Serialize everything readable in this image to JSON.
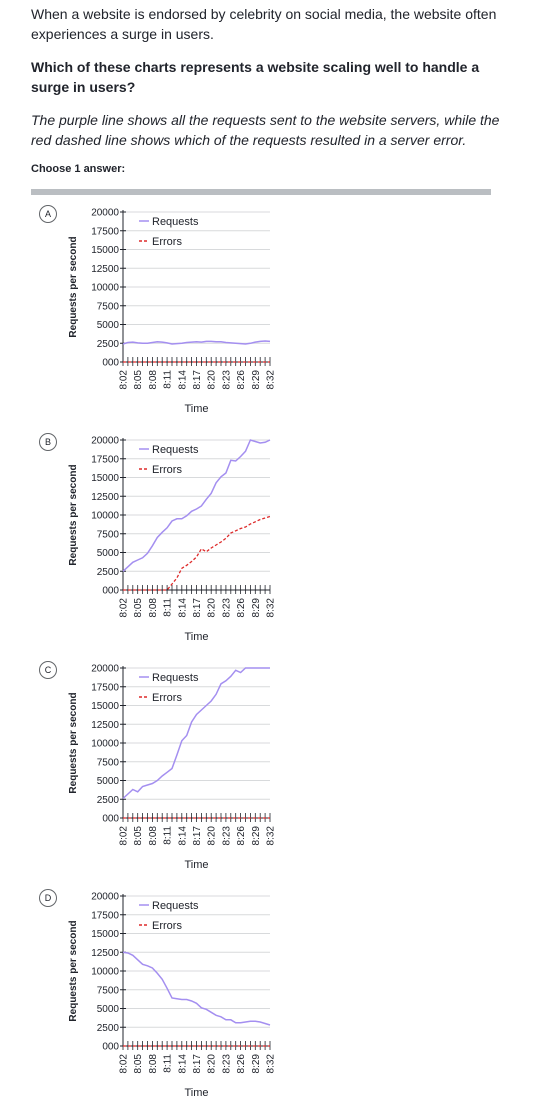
{
  "question": {
    "intro": "When a website is endorsed by celebrity on social media, the website often experiences a surge in users.",
    "prompt": "Which of these charts represents a website scaling well to handle a surge in users?",
    "note": "The purple line shows all the requests sent to the website servers, while the red dashed line shows which of the requests resulted in a server error.",
    "choose_label": "Choose 1 answer:"
  },
  "colors": {
    "requests": "#a48ff0",
    "errors": "#dd2a2a",
    "grid": "#d8dadc"
  },
  "choices": [
    {
      "letter": "A"
    },
    {
      "letter": "B"
    },
    {
      "letter": "C"
    },
    {
      "letter": "D"
    }
  ],
  "chart_data": [
    {
      "type": "line",
      "xlabel": "Time",
      "ylabel": "Requests per second",
      "y_ticks": [
        "000",
        "2500",
        "5000",
        "7500",
        "10000",
        "12500",
        "15000",
        "17500",
        "20000"
      ],
      "ylim": [
        0,
        20000
      ],
      "x_ticks": [
        "8:02",
        "8:05",
        "8:08",
        "8:11",
        "8:14",
        "8:17",
        "8:20",
        "8:23",
        "8:26",
        "8:29",
        "8:32"
      ],
      "legend": {
        "position": "top-right",
        "entries": [
          "Requests",
          "Errors"
        ]
      },
      "series": [
        {
          "name": "Requests",
          "style": "solid",
          "values": [
            2400,
            2600,
            2650,
            2550,
            2500,
            2500,
            2600,
            2700,
            2650,
            2550,
            2400,
            2450,
            2500,
            2600,
            2650,
            2700,
            2650,
            2750,
            2750,
            2700,
            2700,
            2600,
            2550,
            2500,
            2450,
            2400,
            2500,
            2650,
            2750,
            2800,
            2750
          ]
        },
        {
          "name": "Errors",
          "style": "dashed",
          "values": [
            0,
            0,
            0,
            0,
            0,
            0,
            0,
            0,
            0,
            0,
            0,
            0,
            0,
            0,
            0,
            0,
            0,
            0,
            0,
            0,
            0,
            0,
            0,
            0,
            0,
            0,
            0,
            0,
            0,
            0,
            0
          ]
        }
      ]
    },
    {
      "type": "line",
      "xlabel": "Time",
      "ylabel": "Requests per second",
      "y_ticks": [
        "000",
        "2500",
        "5000",
        "7500",
        "10000",
        "12500",
        "15000",
        "17500",
        "20000"
      ],
      "ylim": [
        0,
        20000
      ],
      "x_ticks": [
        "8:02",
        "8:05",
        "8:08",
        "8:11",
        "8:14",
        "8:17",
        "8:20",
        "8:23",
        "8:26",
        "8:29",
        "8:32"
      ],
      "legend": {
        "position": "top-right",
        "entries": [
          "Requests",
          "Errors"
        ]
      },
      "series": [
        {
          "name": "Requests",
          "style": "solid",
          "values": [
            2500,
            3100,
            3700,
            4000,
            4300,
            4900,
            5900,
            7000,
            7700,
            8300,
            9200,
            9500,
            9500,
            9900,
            10500,
            10800,
            11200,
            12100,
            12900,
            14300,
            15100,
            15600,
            17300,
            17200,
            17800,
            18500,
            20000,
            19800,
            19600,
            19700,
            20000
          ]
        },
        {
          "name": "Errors",
          "style": "dashed",
          "values": [
            0,
            0,
            0,
            0,
            0,
            0,
            0,
            0,
            0,
            0,
            800,
            1600,
            2900,
            3300,
            3800,
            4400,
            5500,
            5100,
            5600,
            6000,
            6400,
            6900,
            7600,
            7900,
            8200,
            8400,
            8800,
            9100,
            9400,
            9600,
            9800
          ]
        }
      ]
    },
    {
      "type": "line",
      "xlabel": "Time",
      "ylabel": "Requests per second",
      "y_ticks": [
        "000",
        "2500",
        "5000",
        "7500",
        "10000",
        "12500",
        "15000",
        "17500",
        "20000"
      ],
      "ylim": [
        0,
        20000
      ],
      "x_ticks": [
        "8:02",
        "8:05",
        "8:08",
        "8:11",
        "8:14",
        "8:17",
        "8:20",
        "8:23",
        "8:26",
        "8:29",
        "8:32"
      ],
      "legend": {
        "position": "top-right",
        "entries": [
          "Requests",
          "Errors"
        ]
      },
      "series": [
        {
          "name": "Requests",
          "style": "solid",
          "values": [
            2600,
            3200,
            3800,
            3500,
            4200,
            4400,
            4600,
            5000,
            5600,
            6100,
            6600,
            8400,
            10300,
            11000,
            12800,
            13800,
            14400,
            15000,
            15600,
            16500,
            17900,
            18300,
            18900,
            19700,
            19400,
            20000,
            20000,
            20000,
            20000,
            20000,
            20000
          ]
        },
        {
          "name": "Errors",
          "style": "dashed",
          "values": [
            0,
            0,
            0,
            0,
            0,
            0,
            0,
            0,
            0,
            0,
            0,
            0,
            0,
            0,
            0,
            0,
            0,
            0,
            0,
            0,
            0,
            0,
            0,
            0,
            0,
            0,
            0,
            0,
            0,
            0,
            0
          ]
        }
      ]
    },
    {
      "type": "line",
      "xlabel": "Time",
      "ylabel": "Requests per second",
      "y_ticks": [
        "000",
        "2500",
        "5000",
        "7500",
        "10000",
        "12500",
        "15000",
        "17500",
        "20000"
      ],
      "ylim": [
        0,
        20000
      ],
      "x_ticks": [
        "8:02",
        "8:05",
        "8:08",
        "8:11",
        "8:14",
        "8:17",
        "8:20",
        "8:23",
        "8:26",
        "8:29",
        "8:32"
      ],
      "legend": {
        "position": "top-right",
        "entries": [
          "Requests",
          "Errors"
        ]
      },
      "series": [
        {
          "name": "Requests",
          "style": "solid",
          "values": [
            12500,
            12400,
            12100,
            11500,
            10900,
            10700,
            10400,
            9700,
            8900,
            7700,
            6400,
            6300,
            6200,
            6200,
            6000,
            5700,
            5100,
            4900,
            4500,
            4100,
            3900,
            3500,
            3500,
            3100,
            3100,
            3200,
            3300,
            3300,
            3200,
            3000,
            2800
          ]
        },
        {
          "name": "Errors",
          "style": "dashed",
          "values": [
            0,
            0,
            0,
            0,
            0,
            0,
            0,
            0,
            0,
            0,
            0,
            0,
            0,
            0,
            0,
            0,
            0,
            0,
            0,
            0,
            0,
            0,
            0,
            0,
            0,
            0,
            0,
            0,
            0,
            0,
            0
          ]
        }
      ]
    }
  ]
}
